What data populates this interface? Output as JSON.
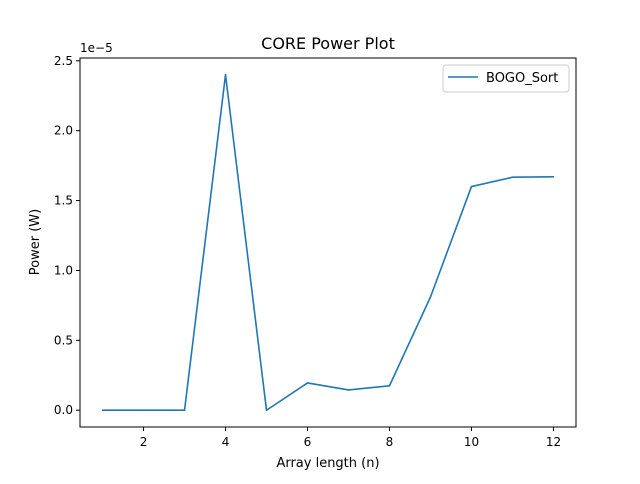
{
  "chart_data": {
    "type": "line",
    "title": "CORE Power Plot",
    "xlabel": "Array length (n)",
    "ylabel": "Power (W)",
    "y_offset_label": "1e−5",
    "xlim": [
      0.45,
      12.55
    ],
    "ylim": [
      -1.2e-06,
      2.52e-05
    ],
    "x_ticks": [
      2,
      4,
      6,
      8,
      10,
      12
    ],
    "x_tick_labels": [
      "2",
      "4",
      "6",
      "8",
      "10",
      "12"
    ],
    "y_ticks": [
      0,
      5e-06,
      1e-05,
      1.5e-05,
      2e-05,
      2.5e-05
    ],
    "y_tick_labels": [
      "0.0",
      "0.5",
      "1.0",
      "1.5",
      "2.0",
      "2.5"
    ],
    "grid": false,
    "legend_position": "top-right",
    "series": [
      {
        "name": "BOGO_Sort",
        "color": "#1f77b4",
        "x": [
          1,
          2,
          3,
          4,
          5,
          6,
          7,
          8,
          9,
          10,
          11,
          12
        ],
        "y": [
          0,
          0,
          0,
          2.4e-05,
          0,
          1.95e-06,
          1.45e-06,
          1.75e-06,
          8.1e-06,
          1.6e-05,
          1.667e-05,
          1.67e-05
        ]
      }
    ]
  }
}
